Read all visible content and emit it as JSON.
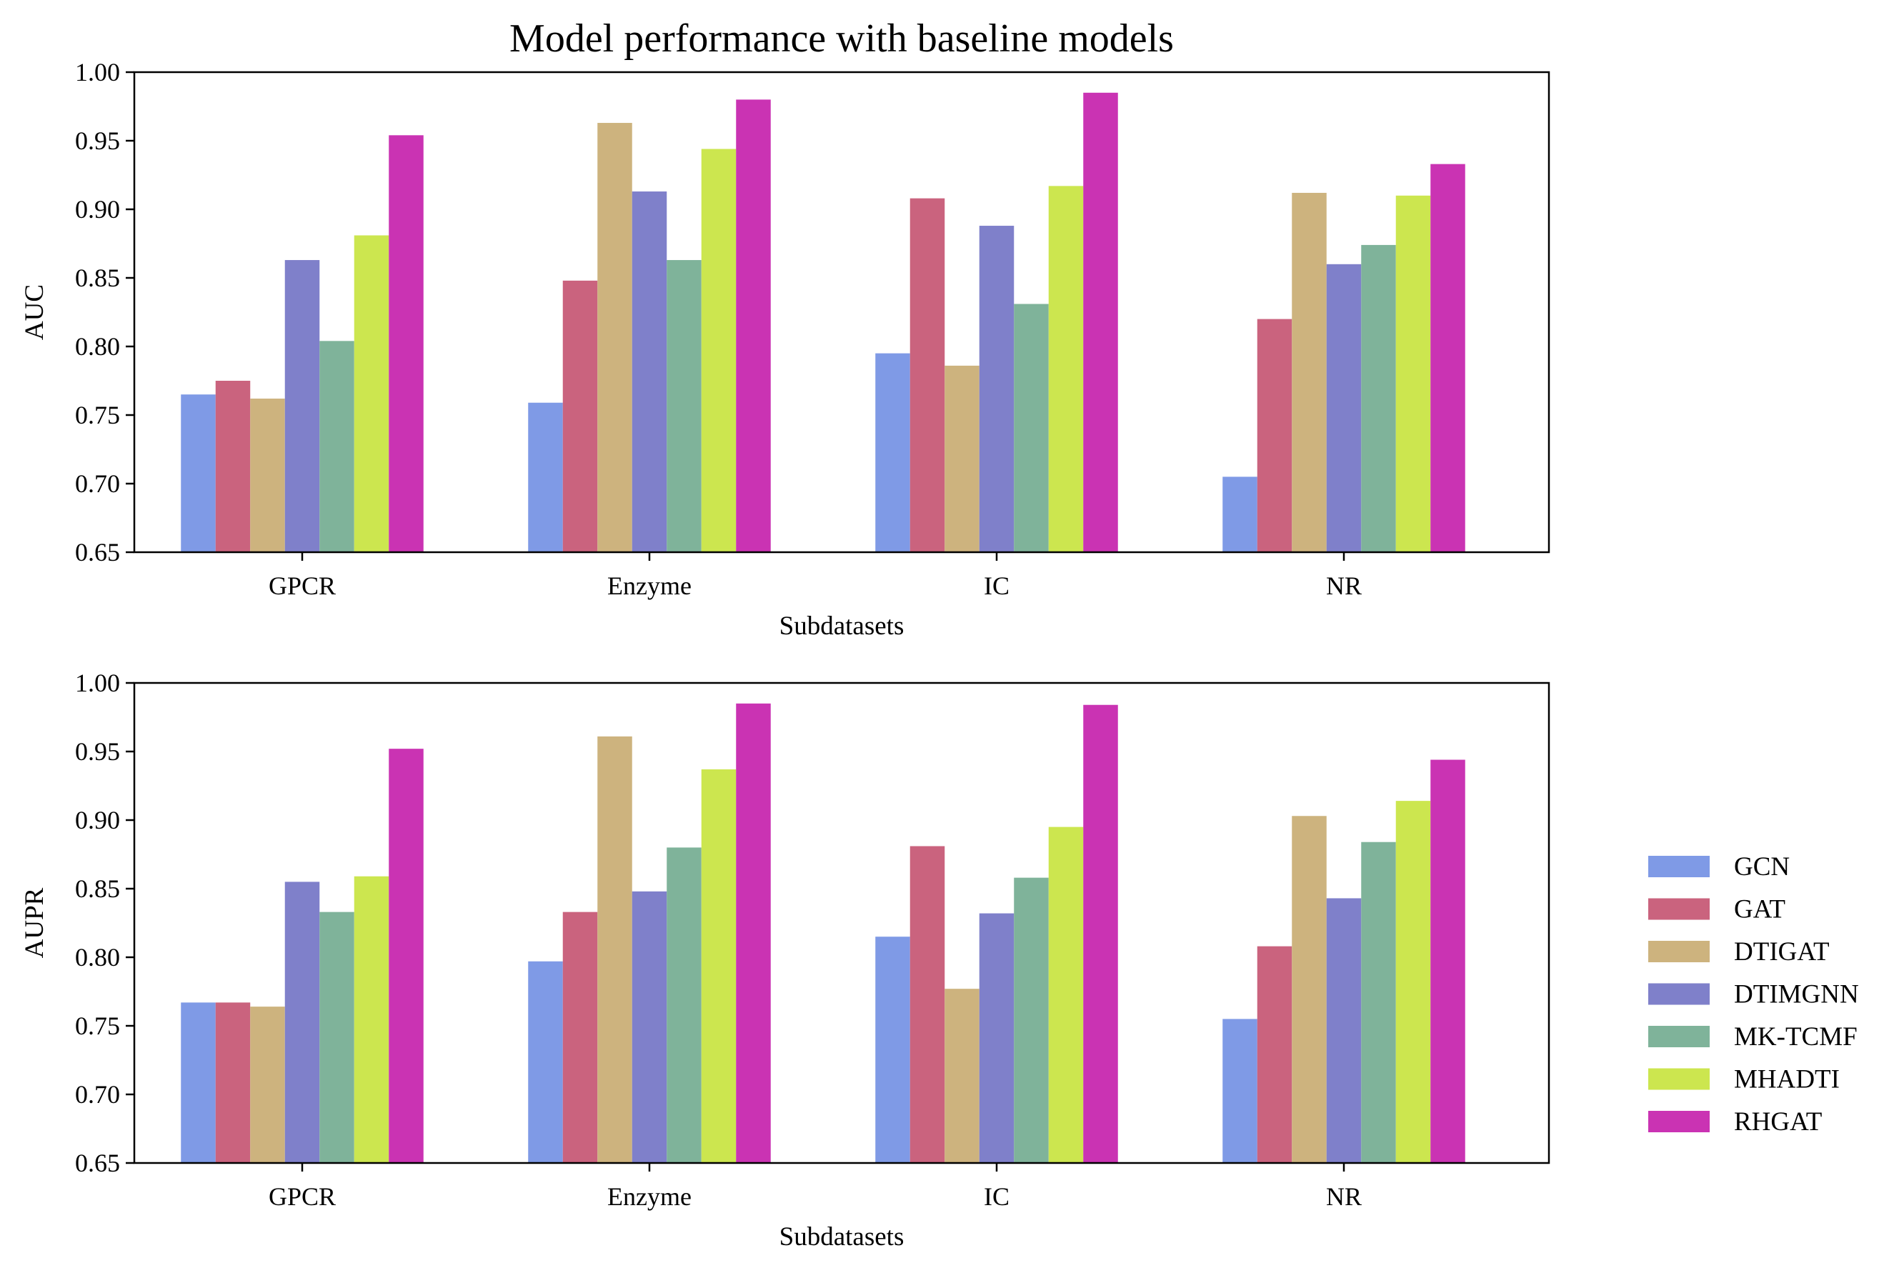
{
  "figure_title": "Model performance with baseline models",
  "legend": {
    "entries": [
      {
        "name": "GCN",
        "color": "#7F9AE6"
      },
      {
        "name": "GAT",
        "color": "#CA637E"
      },
      {
        "name": "DTIGAT",
        "color": "#CDB37E"
      },
      {
        "name": "DTIMGNN",
        "color": "#7F80CA"
      },
      {
        "name": "MK-TCMF",
        "color": "#7FB39A"
      },
      {
        "name": "MHADTI",
        "color": "#CCE64F"
      },
      {
        "name": "RHGAT",
        "color": "#CA33B3"
      }
    ]
  },
  "chart_data": [
    {
      "type": "bar",
      "title": "Model performance with baseline models",
      "xlabel": "Subdatasets",
      "ylabel": "AUC",
      "ylim": [
        0.65,
        1.0
      ],
      "yticks": [
        "0.65",
        "0.70",
        "0.75",
        "0.80",
        "0.85",
        "0.90",
        "0.95",
        "1.00"
      ],
      "categories": [
        "GPCR",
        "Enzyme",
        "IC",
        "NR"
      ],
      "grid": false,
      "legend_position": "right",
      "series": [
        {
          "name": "GCN",
          "color": "#7F9AE6",
          "values": [
            0.765,
            0.759,
            0.795,
            0.705
          ]
        },
        {
          "name": "GAT",
          "color": "#CA637E",
          "values": [
            0.775,
            0.848,
            0.908,
            0.82
          ]
        },
        {
          "name": "DTIGAT",
          "color": "#CDB37E",
          "values": [
            0.762,
            0.963,
            0.786,
            0.912
          ]
        },
        {
          "name": "DTIMGNN",
          "color": "#7F80CA",
          "values": [
            0.863,
            0.913,
            0.888,
            0.86
          ]
        },
        {
          "name": "MK-TCMF",
          "color": "#7FB39A",
          "values": [
            0.804,
            0.863,
            0.831,
            0.874
          ]
        },
        {
          "name": "MHADTI",
          "color": "#CCE64F",
          "values": [
            0.881,
            0.944,
            0.917,
            0.91
          ]
        },
        {
          "name": "RHGAT",
          "color": "#CA33B3",
          "values": [
            0.954,
            0.98,
            0.985,
            0.933
          ]
        }
      ]
    },
    {
      "type": "bar",
      "title": "",
      "xlabel": "Subdatasets",
      "ylabel": "AUPR",
      "ylim": [
        0.65,
        1.0
      ],
      "yticks": [
        "0.65",
        "0.70",
        "0.75",
        "0.80",
        "0.85",
        "0.90",
        "0.95",
        "1.00"
      ],
      "categories": [
        "GPCR",
        "Enzyme",
        "IC",
        "NR"
      ],
      "grid": false,
      "legend_position": "right",
      "series": [
        {
          "name": "GCN",
          "color": "#7F9AE6",
          "values": [
            0.767,
            0.797,
            0.815,
            0.755
          ]
        },
        {
          "name": "GAT",
          "color": "#CA637E",
          "values": [
            0.767,
            0.833,
            0.881,
            0.808
          ]
        },
        {
          "name": "DTIGAT",
          "color": "#CDB37E",
          "values": [
            0.764,
            0.961,
            0.777,
            0.903
          ]
        },
        {
          "name": "DTIMGNN",
          "color": "#7F80CA",
          "values": [
            0.855,
            0.848,
            0.832,
            0.843
          ]
        },
        {
          "name": "MK-TCMF",
          "color": "#7FB39A",
          "values": [
            0.833,
            0.88,
            0.858,
            0.884
          ]
        },
        {
          "name": "MHADTI",
          "color": "#CCE64F",
          "values": [
            0.859,
            0.937,
            0.895,
            0.914
          ]
        },
        {
          "name": "RHGAT",
          "color": "#CA33B3",
          "values": [
            0.952,
            0.985,
            0.984,
            0.944
          ]
        }
      ]
    }
  ]
}
